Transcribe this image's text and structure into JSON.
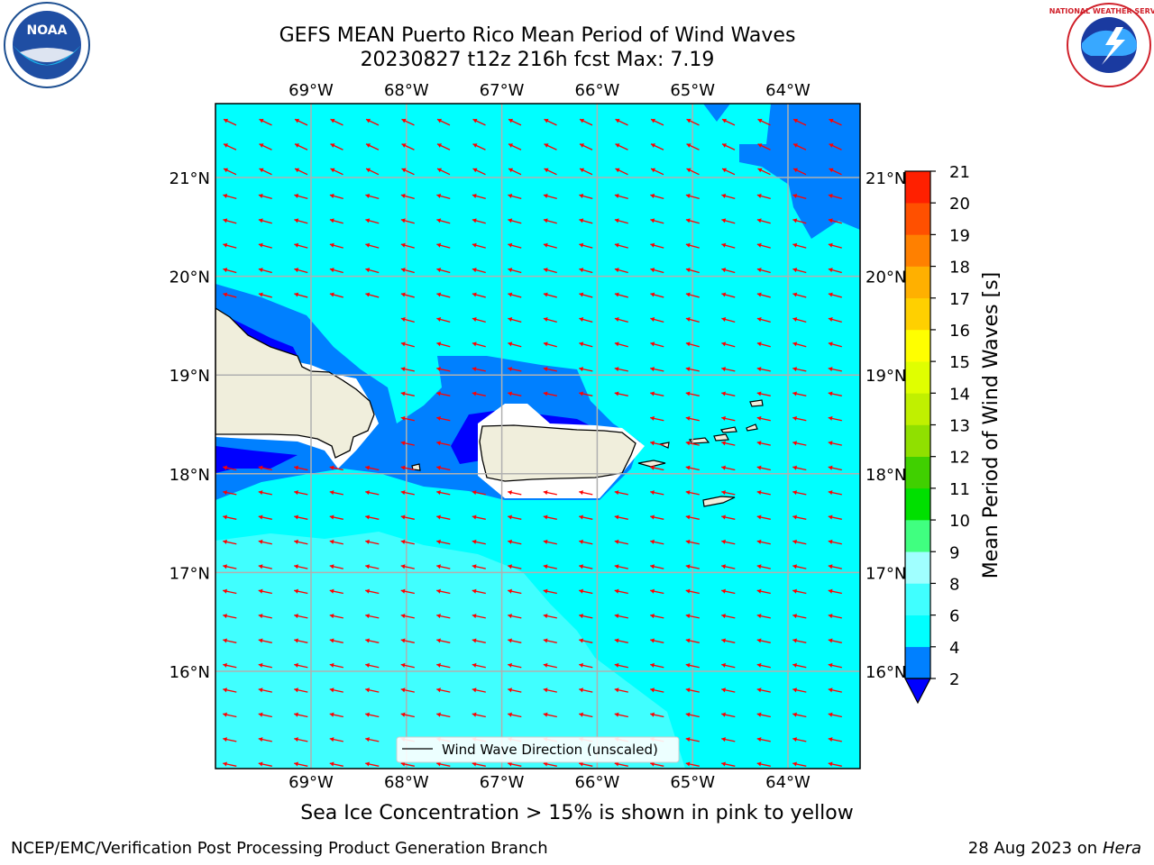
{
  "title": {
    "line1": "GEFS MEAN Puerto Rico Mean Period of Wind Waves",
    "line2": "20230827 t12z 216h fcst   Max: 7.19"
  },
  "map": {
    "lon_ticks": [
      "69°W",
      "68°W",
      "67°W",
      "66°W",
      "65°W",
      "64°W"
    ],
    "lat_ticks": [
      "21°N",
      "20°N",
      "19°N",
      "18°N",
      "17°N",
      "16°N"
    ],
    "legend": "Wind Wave Direction (unscaled)",
    "colors": {
      "land": "#f0eedc",
      "arrow": "#ff0000",
      "grid": "#b0b0b0"
    }
  },
  "colorbar": {
    "label": "Mean Period of Wind Waves [s]",
    "ticks": [
      "2",
      "4",
      "6",
      "8",
      "9",
      "10",
      "11",
      "12",
      "13",
      "14",
      "15",
      "16",
      "17",
      "18",
      "19",
      "20",
      "21"
    ],
    "colors": [
      "#0080ff",
      "#00ffff",
      "#40ffff",
      "#a0ffff",
      "#40ff80",
      "#00e000",
      "#40d000",
      "#90e000",
      "#c0f000",
      "#e0ff00",
      "#ffff00",
      "#ffd000",
      "#ffb000",
      "#ff8000",
      "#ff5000",
      "#ff2000"
    ],
    "below_color": "#0000ff"
  },
  "subnote": "Sea Ice Concentration > 15% is shown in pink to yellow",
  "footer": {
    "left": "NCEP/EMC/Verification Post Processing Product Generation Branch",
    "date": "28 Aug 2023 on",
    "host": "Hera"
  },
  "logos": {
    "noaa_text": "NOAA",
    "nws_text": "NATIONAL WEATHER SERVICE"
  }
}
